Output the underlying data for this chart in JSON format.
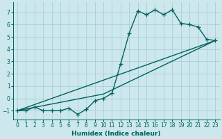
{
  "xlabel": "Humidex (Indice chaleur)",
  "bg_color": "#cce8ec",
  "grid_color": "#aacdd4",
  "line_color": "#006060",
  "xlim": [
    -0.5,
    23.5
  ],
  "ylim": [
    -1.7,
    7.8
  ],
  "xticks": [
    0,
    1,
    2,
    3,
    4,
    5,
    6,
    7,
    8,
    9,
    10,
    11,
    12,
    13,
    14,
    15,
    16,
    17,
    18,
    19,
    20,
    21,
    22,
    23
  ],
  "yticks": [
    -1,
    0,
    1,
    2,
    3,
    4,
    5,
    6,
    7
  ],
  "curve1_x": [
    0,
    1,
    2,
    3,
    4,
    5,
    6,
    7,
    8,
    9,
    10,
    11,
    12,
    13,
    14,
    15,
    16,
    17,
    18,
    19,
    20,
    21,
    22,
    23
  ],
  "curve1_y": [
    -1,
    -1,
    -0.7,
    -1,
    -1,
    -1,
    -0.8,
    -1.3,
    -0.9,
    -0.2,
    0.0,
    0.4,
    2.8,
    5.3,
    7.1,
    6.8,
    7.2,
    6.8,
    7.2,
    6.1,
    6.0,
    5.8,
    4.8,
    4.7
  ],
  "curve2_x": [
    0,
    23
  ],
  "curve2_y": [
    -1,
    4.7
  ],
  "curve3_x": [
    0,
    10,
    23
  ],
  "curve3_y": [
    -1,
    0.35,
    4.7
  ],
  "linewidth": 1.0,
  "markersize": 4
}
